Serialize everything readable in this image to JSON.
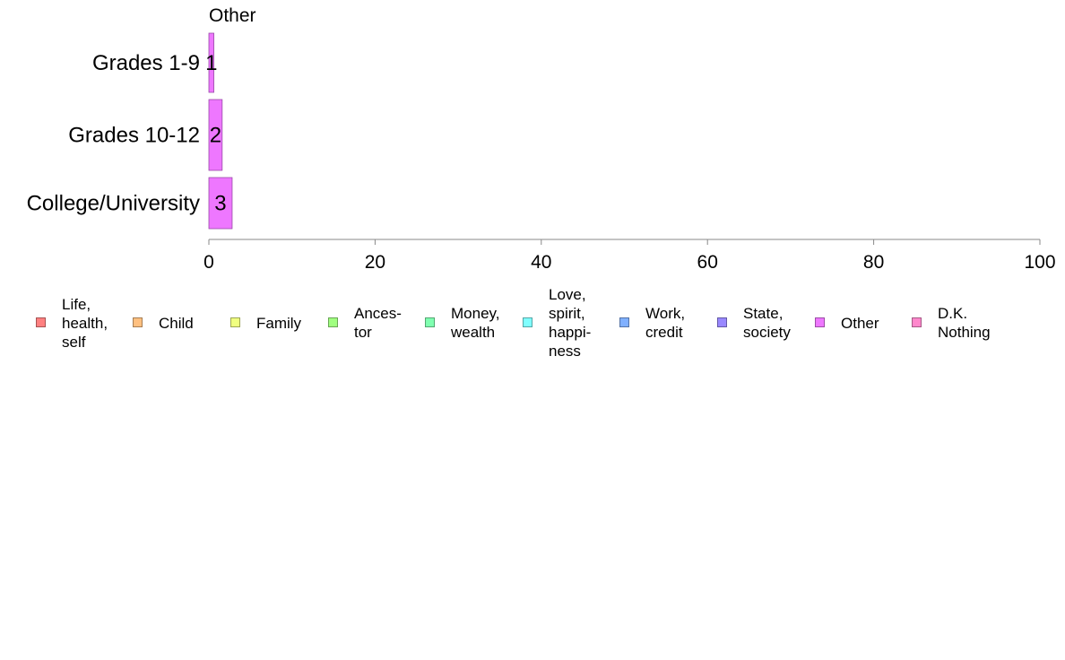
{
  "chart_data": {
    "type": "bar",
    "orientation": "horizontal",
    "title": "Other",
    "categories": [
      "Grades 1-9",
      "Grades 10-12",
      "College/University"
    ],
    "series": [
      {
        "name": "Other",
        "values": [
          0.6,
          1.6,
          2.8
        ],
        "labels": [
          "1",
          "2",
          "3"
        ]
      }
    ],
    "xlim": [
      0,
      100
    ],
    "xticks": [
      "0",
      "20",
      "40",
      "60",
      "80",
      "100"
    ],
    "xtick_values": [
      0,
      20,
      40,
      60,
      80,
      100
    ],
    "grid": false,
    "legend_position": "bottom",
    "bar_color": "#ee77ff"
  },
  "legend": [
    {
      "label": "Life,\nhealth,\nself",
      "color": "#ff8080"
    },
    {
      "label": "Child",
      "color": "#ffc080"
    },
    {
      "label": "Family",
      "color": "#f0ff80"
    },
    {
      "label": "Ances-\ntor",
      "color": "#a0ff80"
    },
    {
      "label": "Money,\nwealth",
      "color": "#80ffb0"
    },
    {
      "label": "Love,\nspirit,\nhappi-\nness",
      "color": "#80ffff"
    },
    {
      "label": "Work,\ncredit",
      "color": "#80b0ff"
    },
    {
      "label": "State,\nsociety",
      "color": "#9988ff"
    },
    {
      "label": "Other",
      "color": "#ee77ff"
    },
    {
      "label": "D.K.\nNothing",
      "color": "#ff88cc"
    }
  ]
}
